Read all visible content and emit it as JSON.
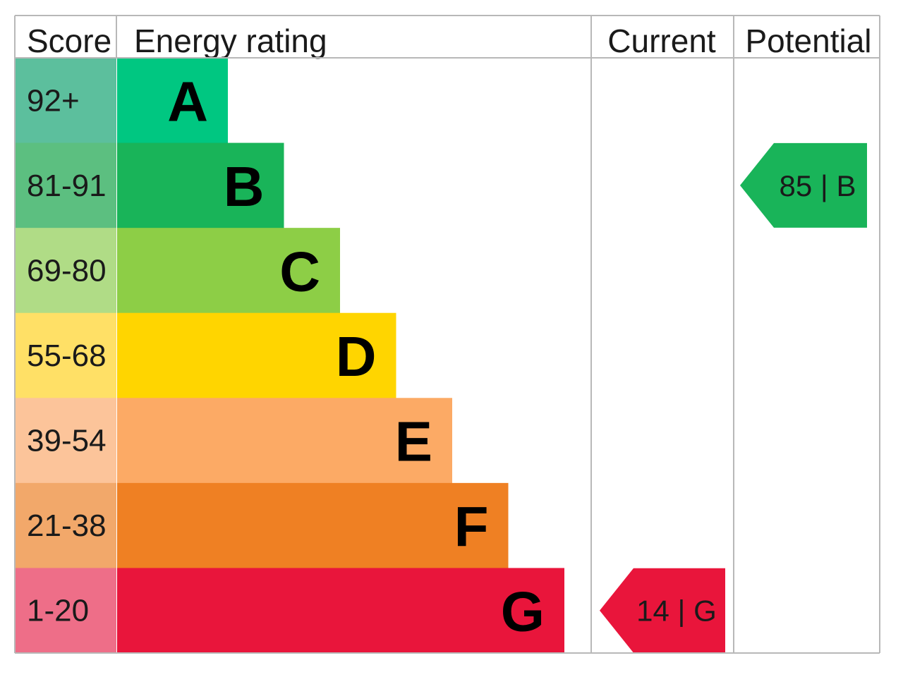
{
  "headers": {
    "score": "Score",
    "energy_rating": "Energy rating",
    "current": "Current",
    "potential": "Potential"
  },
  "chart_data": {
    "type": "bar",
    "categories": [
      "A",
      "B",
      "C",
      "D",
      "E",
      "F",
      "G"
    ],
    "bands": [
      {
        "letter": "A",
        "range": "92+",
        "min": 92,
        "max": 100,
        "color": "#00c781",
        "score_color": "#5cbf9d"
      },
      {
        "letter": "B",
        "range": "81-91",
        "min": 81,
        "max": 91,
        "color": "#19b459",
        "score_color": "#5cbf80"
      },
      {
        "letter": "C",
        "range": "69-80",
        "min": 69,
        "max": 80,
        "color": "#8dce46",
        "score_color": "#b0dc86"
      },
      {
        "letter": "D",
        "range": "55-68",
        "min": 55,
        "max": 68,
        "color": "#ffd500",
        "score_color": "#ffe066"
      },
      {
        "letter": "E",
        "range": "39-54",
        "min": 39,
        "max": 54,
        "color": "#fcaa65",
        "score_color": "#fcc49a"
      },
      {
        "letter": "F",
        "range": "21-38",
        "min": 21,
        "max": 38,
        "color": "#ef8023",
        "score_color": "#f2a86a"
      },
      {
        "letter": "G",
        "range": "1-20",
        "min": 1,
        "max": 20,
        "color": "#e9153b",
        "score_color": "#ee6e88"
      }
    ],
    "current": {
      "value": 14,
      "band": "G",
      "label": "14 |  G",
      "color": "#e9153b"
    },
    "potential": {
      "value": 85,
      "band": "B",
      "label": "85 |  B",
      "color": "#19b459"
    }
  }
}
